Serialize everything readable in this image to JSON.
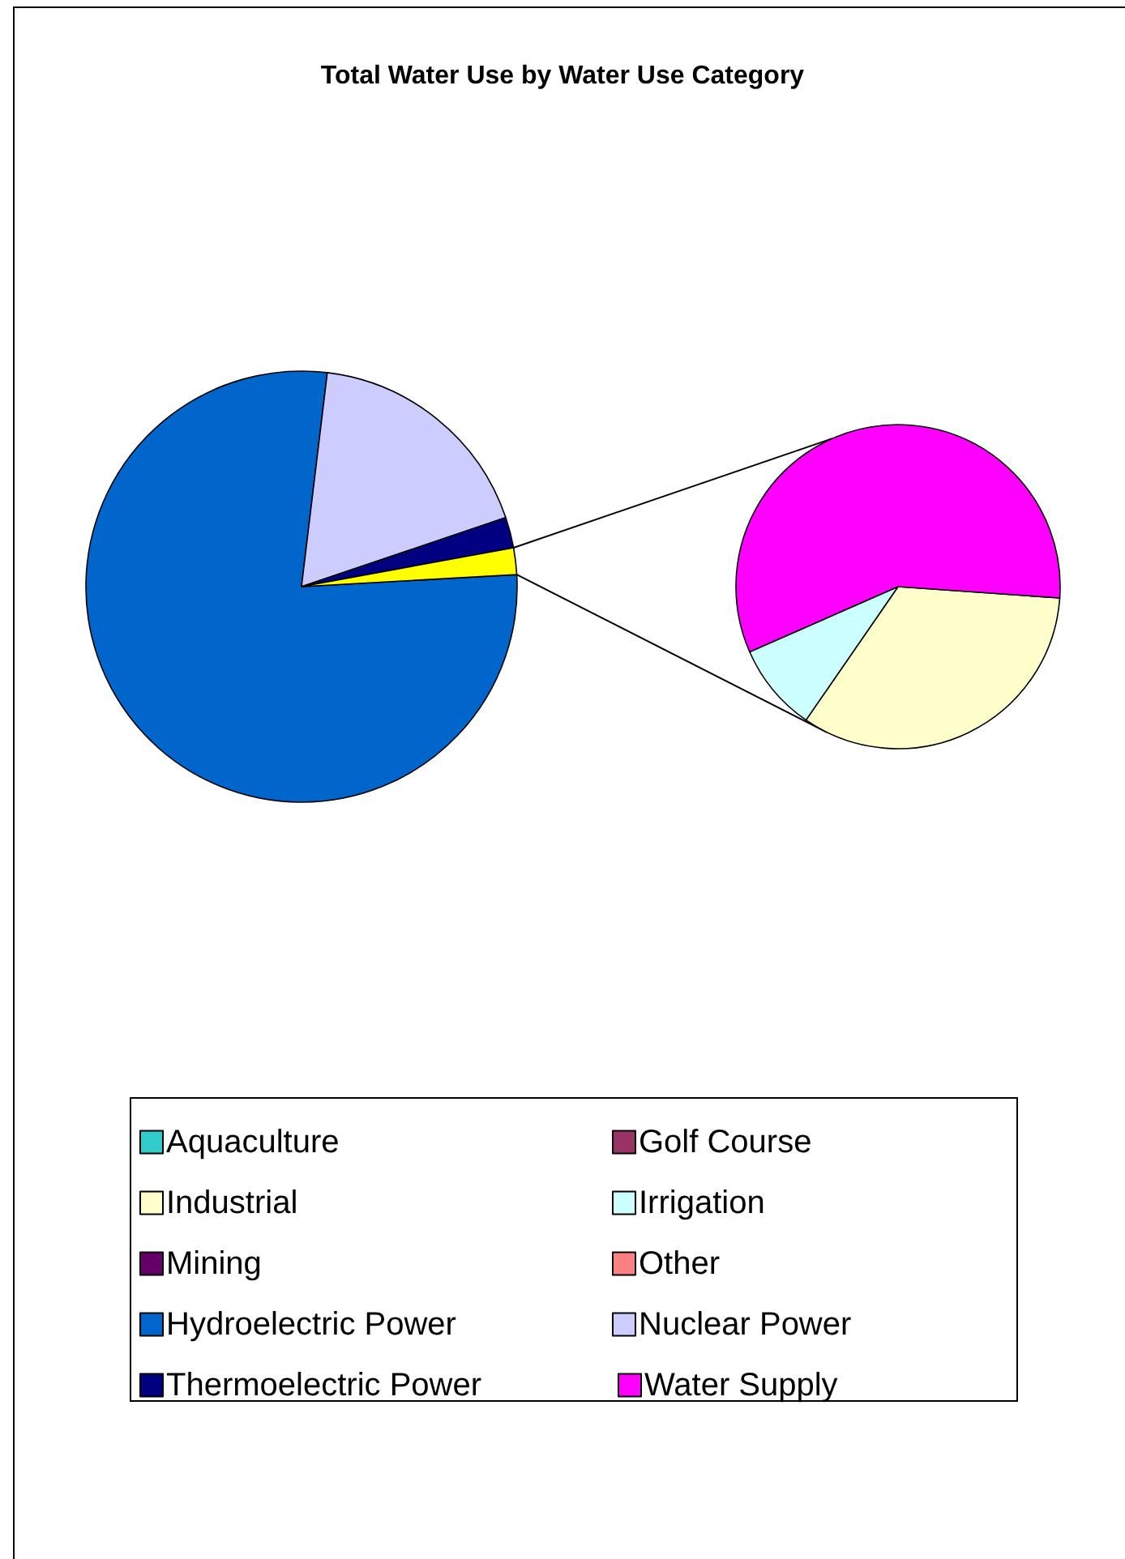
{
  "chart_data": [
    {
      "type": "pie",
      "title": "Total Water Use by Water Use Category",
      "legend": "bottom",
      "categories": [
        "Hydroelectric Power",
        "Nuclear Power",
        "Thermoelectric Power",
        null
      ],
      "values": [
        77.8,
        17.9,
        2.3,
        2.0
      ],
      "colors": [
        "#0066cc",
        "#ccccff",
        "#000080",
        "#ffff00"
      ]
    },
    {
      "type": "pie",
      "legend": "bottom",
      "categories": [
        "Aquaculture",
        "Golf Course",
        "Industrial",
        "Irrigation",
        "Mining",
        "Other",
        "Water Supply"
      ],
      "values": [
        null,
        null,
        33.5,
        8.8,
        null,
        null,
        57.7
      ],
      "colors": [
        "#33cccc",
        "#993366",
        "#ffffcc",
        "#ccffff",
        "#660066",
        "#ff8080",
        "#ff00ff"
      ]
    }
  ]
}
